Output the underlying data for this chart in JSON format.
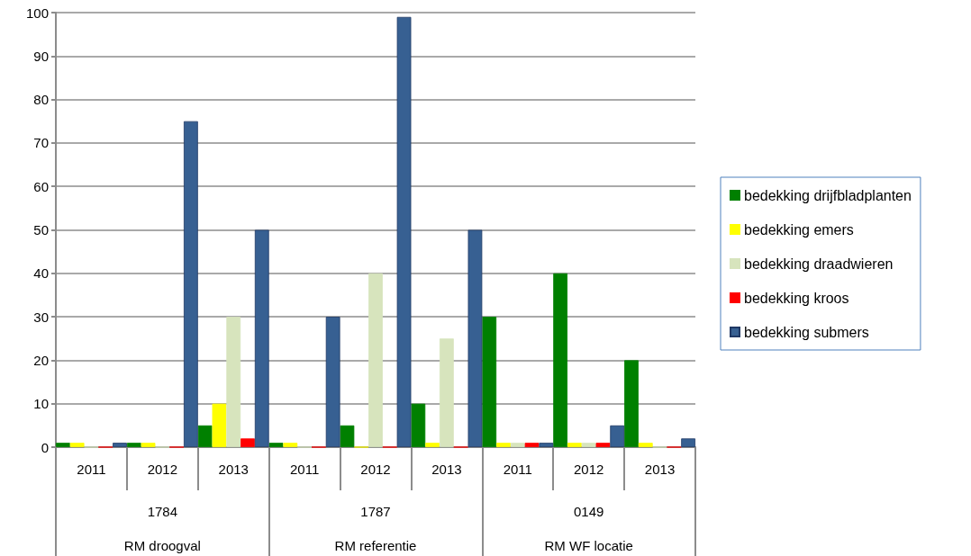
{
  "chart_data": {
    "type": "bar",
    "categories": [
      "2011",
      "2012",
      "2013",
      "2011",
      "2012",
      "2013",
      "2011",
      "2012",
      "2013"
    ],
    "series": [
      {
        "name": "bedekking drijfbladplanten",
        "color": "#008000",
        "values": [
          1,
          1,
          5,
          1,
          5,
          10,
          30,
          40,
          20
        ]
      },
      {
        "name": "bedekking emers",
        "color": "#ffff00",
        "values": [
          1,
          1,
          10,
          1,
          0,
          1,
          1,
          1,
          1
        ]
      },
      {
        "name": "bedekking draadwieren",
        "color": "#d7e4bd",
        "values": [
          0,
          0,
          30,
          0,
          40,
          25,
          1,
          1,
          0
        ]
      },
      {
        "name": "bedekking kroos",
        "color": "#ff0000",
        "values": [
          0,
          0,
          2,
          0,
          0,
          0,
          1,
          1,
          0
        ]
      },
      {
        "name": "bedekking submers",
        "color": "#376092",
        "values": [
          1,
          75,
          50,
          30,
          99,
          50,
          1,
          5,
          2
        ]
      }
    ],
    "annotations": [
      "1784",
      "1787",
      "0149",
      "RM droogval",
      "RM referentie",
      "RM WF locatie"
    ],
    "ylim": [
      0,
      100
    ],
    "yticks": [
      0,
      10,
      20,
      30,
      40,
      50,
      60,
      70,
      80,
      90,
      100
    ],
    "grid": "y",
    "legend": "right"
  }
}
